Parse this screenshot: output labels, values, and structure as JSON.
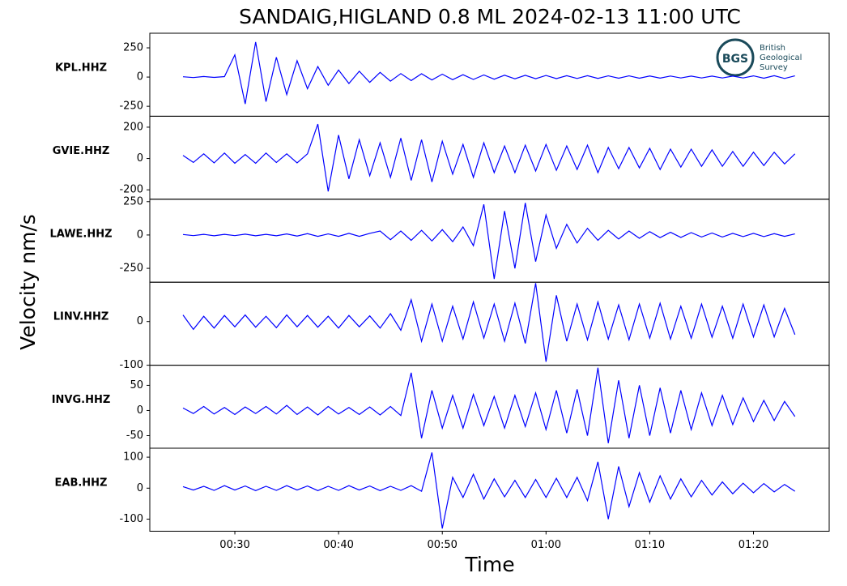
{
  "title": "SANDAIG,HIGLAND 0.8 ML   2024-02-13 11:00 UTC",
  "y_label": "Velocity nm/s",
  "x_label": "Time",
  "logo": {
    "abbr": "BGS",
    "lines": [
      "British",
      "Geological",
      "Survey"
    ]
  },
  "chart_data": [
    {
      "type": "line",
      "label": "KPL.HHZ",
      "color": "#0000ff",
      "xlim": [
        21.8,
        87.3
      ],
      "ylim": [
        -335,
        375
      ],
      "yticks": [
        -250,
        0,
        250
      ],
      "x": [
        25,
        26,
        27,
        28,
        29,
        30,
        31,
        32,
        33,
        34,
        35,
        36,
        37,
        38,
        39,
        40,
        41,
        42,
        43,
        44,
        45,
        46,
        47,
        48,
        49,
        50,
        51,
        52,
        53,
        54,
        55,
        56,
        57,
        58,
        59,
        60,
        61,
        62,
        63,
        64,
        65,
        66,
        67,
        68,
        69,
        70,
        71,
        72,
        73,
        74,
        75,
        76,
        77,
        78,
        79,
        80,
        81,
        82,
        83,
        84
      ],
      "values": [
        3,
        -4,
        5,
        -3,
        4,
        190,
        -230,
        300,
        -210,
        170,
        -150,
        140,
        -100,
        90,
        -70,
        60,
        -55,
        50,
        -45,
        40,
        -35,
        30,
        -30,
        28,
        -25,
        25,
        -22,
        20,
        -20,
        18,
        -18,
        16,
        -15,
        15,
        -14,
        14,
        -13,
        12,
        -12,
        12,
        -11,
        10,
        -10,
        10,
        -10,
        9,
        -9,
        9,
        -8,
        8,
        -8,
        8,
        -8,
        8,
        -8,
        10,
        -10,
        12,
        -12,
        10
      ]
    },
    {
      "type": "line",
      "label": "GVIE.HHZ",
      "color": "#0000ff",
      "xlim": [
        21.8,
        87.3
      ],
      "ylim": [
        -260,
        270
      ],
      "yticks": [
        -200,
        0,
        200
      ],
      "x": [
        25,
        26,
        27,
        28,
        29,
        30,
        31,
        32,
        33,
        34,
        35,
        36,
        37,
        38,
        39,
        40,
        41,
        42,
        43,
        44,
        45,
        46,
        47,
        48,
        49,
        50,
        51,
        52,
        53,
        54,
        55,
        56,
        57,
        58,
        59,
        60,
        61,
        62,
        63,
        64,
        65,
        66,
        67,
        68,
        69,
        70,
        71,
        72,
        73,
        74,
        75,
        76,
        77,
        78,
        79,
        80,
        81,
        82,
        83,
        84
      ],
      "values": [
        20,
        -25,
        30,
        -28,
        35,
        -30,
        25,
        -30,
        35,
        -25,
        30,
        -28,
        30,
        220,
        -210,
        150,
        -130,
        120,
        -110,
        100,
        -120,
        130,
        -140,
        120,
        -150,
        110,
        -100,
        90,
        -120,
        100,
        -90,
        80,
        -90,
        85,
        -80,
        90,
        -75,
        80,
        -70,
        85,
        -90,
        70,
        -65,
        70,
        -60,
        65,
        -70,
        60,
        -55,
        60,
        -50,
        55,
        -50,
        45,
        -50,
        40,
        -45,
        40,
        -35,
        30
      ]
    },
    {
      "type": "line",
      "label": "LAWE.HHZ",
      "color": "#0000ff",
      "xlim": [
        21.8,
        87.3
      ],
      "ylim": [
        -354,
        268
      ],
      "yticks": [
        -250,
        0,
        250
      ],
      "x": [
        25,
        26,
        27,
        28,
        29,
        30,
        31,
        32,
        33,
        34,
        35,
        36,
        37,
        38,
        39,
        40,
        41,
        42,
        43,
        44,
        45,
        46,
        47,
        48,
        49,
        50,
        51,
        52,
        53,
        54,
        55,
        56,
        57,
        58,
        59,
        60,
        61,
        62,
        63,
        64,
        65,
        66,
        67,
        68,
        69,
        70,
        71,
        72,
        73,
        74,
        75,
        76,
        77,
        78,
        79,
        80,
        81,
        82,
        83,
        84
      ],
      "values": [
        4,
        -5,
        5,
        -6,
        5,
        -5,
        6,
        -6,
        5,
        -6,
        8,
        -8,
        10,
        -10,
        8,
        -10,
        12,
        -10,
        12,
        30,
        -35,
        30,
        -40,
        35,
        -45,
        40,
        -50,
        60,
        -80,
        230,
        -330,
        180,
        -250,
        240,
        -200,
        150,
        -100,
        80,
        -60,
        50,
        -40,
        35,
        -30,
        30,
        -25,
        25,
        -20,
        20,
        -18,
        18,
        -15,
        15,
        -15,
        12,
        -12,
        12,
        -12,
        10,
        -10,
        8
      ]
    },
    {
      "type": "line",
      "label": "LINV.HHZ",
      "color": "#0000ff",
      "xlim": [
        21.8,
        87.3
      ],
      "ylim": [
        -100,
        90
      ],
      "yticks": [
        -100,
        0
      ],
      "x": [
        25,
        26,
        27,
        28,
        29,
        30,
        31,
        32,
        33,
        34,
        35,
        36,
        37,
        38,
        39,
        40,
        41,
        42,
        43,
        44,
        45,
        46,
        47,
        48,
        49,
        50,
        51,
        52,
        53,
        54,
        55,
        56,
        57,
        58,
        59,
        60,
        61,
        62,
        63,
        64,
        65,
        66,
        67,
        68,
        69,
        70,
        71,
        72,
        73,
        74,
        75,
        76,
        77,
        78,
        79,
        80,
        81,
        82,
        83,
        84
      ],
      "values": [
        15,
        -18,
        12,
        -15,
        14,
        -12,
        15,
        -13,
        12,
        -14,
        15,
        -12,
        14,
        -13,
        12,
        -15,
        14,
        -12,
        13,
        -15,
        18,
        -20,
        50,
        -45,
        40,
        -45,
        35,
        -40,
        45,
        -38,
        40,
        -45,
        42,
        -50,
        88,
        -92,
        60,
        -45,
        40,
        -42,
        45,
        -40,
        38,
        -42,
        40,
        -38,
        42,
        -40,
        35,
        -38,
        40,
        -36,
        35,
        -38,
        40,
        -35,
        38,
        -35,
        30,
        -30
      ]
    },
    {
      "type": "line",
      "label": "INVG.HHZ",
      "color": "#0000ff",
      "xlim": [
        21.8,
        87.3
      ],
      "ylim": [
        -75,
        90
      ],
      "yticks": [
        -50,
        0,
        50
      ],
      "x": [
        25,
        26,
        27,
        28,
        29,
        30,
        31,
        32,
        33,
        34,
        35,
        36,
        37,
        38,
        39,
        40,
        41,
        42,
        43,
        44,
        45,
        46,
        47,
        48,
        49,
        50,
        51,
        52,
        53,
        54,
        55,
        56,
        57,
        58,
        59,
        60,
        61,
        62,
        63,
        64,
        65,
        66,
        67,
        68,
        69,
        70,
        71,
        72,
        73,
        74,
        75,
        76,
        77,
        78,
        79,
        80,
        81,
        82,
        83,
        84
      ],
      "values": [
        5,
        -6,
        8,
        -7,
        6,
        -8,
        7,
        -6,
        8,
        -7,
        10,
        -8,
        7,
        -9,
        8,
        -7,
        6,
        -8,
        7,
        -9,
        8,
        -10,
        75,
        -55,
        40,
        -35,
        30,
        -35,
        32,
        -30,
        28,
        -35,
        30,
        -32,
        35,
        -38,
        40,
        -45,
        42,
        -50,
        85,
        -65,
        60,
        -55,
        50,
        -50,
        45,
        -45,
        40,
        -38,
        35,
        -30,
        30,
        -28,
        25,
        -22,
        20,
        -20,
        18,
        -12
      ]
    },
    {
      "type": "line",
      "label": "EAB.HHZ",
      "color": "#0000ff",
      "xlim": [
        21.8,
        87.3
      ],
      "ylim": [
        -139,
        129
      ],
      "yticks": [
        -100,
        0,
        100
      ],
      "x": [
        25,
        26,
        27,
        28,
        29,
        30,
        31,
        32,
        33,
        34,
        35,
        36,
        37,
        38,
        39,
        40,
        41,
        42,
        43,
        44,
        45,
        46,
        47,
        48,
        49,
        50,
        51,
        52,
        53,
        54,
        55,
        56,
        57,
        58,
        59,
        60,
        61,
        62,
        63,
        64,
        65,
        66,
        67,
        68,
        69,
        70,
        71,
        72,
        73,
        74,
        75,
        76,
        77,
        78,
        79,
        80,
        81,
        82,
        83,
        84
      ],
      "values": [
        5,
        -6,
        6,
        -7,
        8,
        -6,
        7,
        -8,
        6,
        -7,
        8,
        -6,
        7,
        -8,
        6,
        -7,
        8,
        -6,
        7,
        -8,
        6,
        -7,
        8,
        -10,
        115,
        -130,
        35,
        -30,
        45,
        -35,
        30,
        -28,
        25,
        -30,
        28,
        -30,
        32,
        -30,
        35,
        -40,
        85,
        -100,
        70,
        -60,
        50,
        -45,
        40,
        -35,
        30,
        -28,
        25,
        -22,
        20,
        -18,
        16,
        -15,
        15,
        -12,
        12,
        -10
      ],
      "xticks": [
        {
          "value": 30,
          "label": "00:30"
        },
        {
          "value": 40,
          "label": "00:40"
        },
        {
          "value": 50,
          "label": "00:50"
        },
        {
          "value": 60,
          "label": "01:00"
        },
        {
          "value": 70,
          "label": "01:10"
        },
        {
          "value": 80,
          "label": "01:20"
        }
      ]
    }
  ]
}
